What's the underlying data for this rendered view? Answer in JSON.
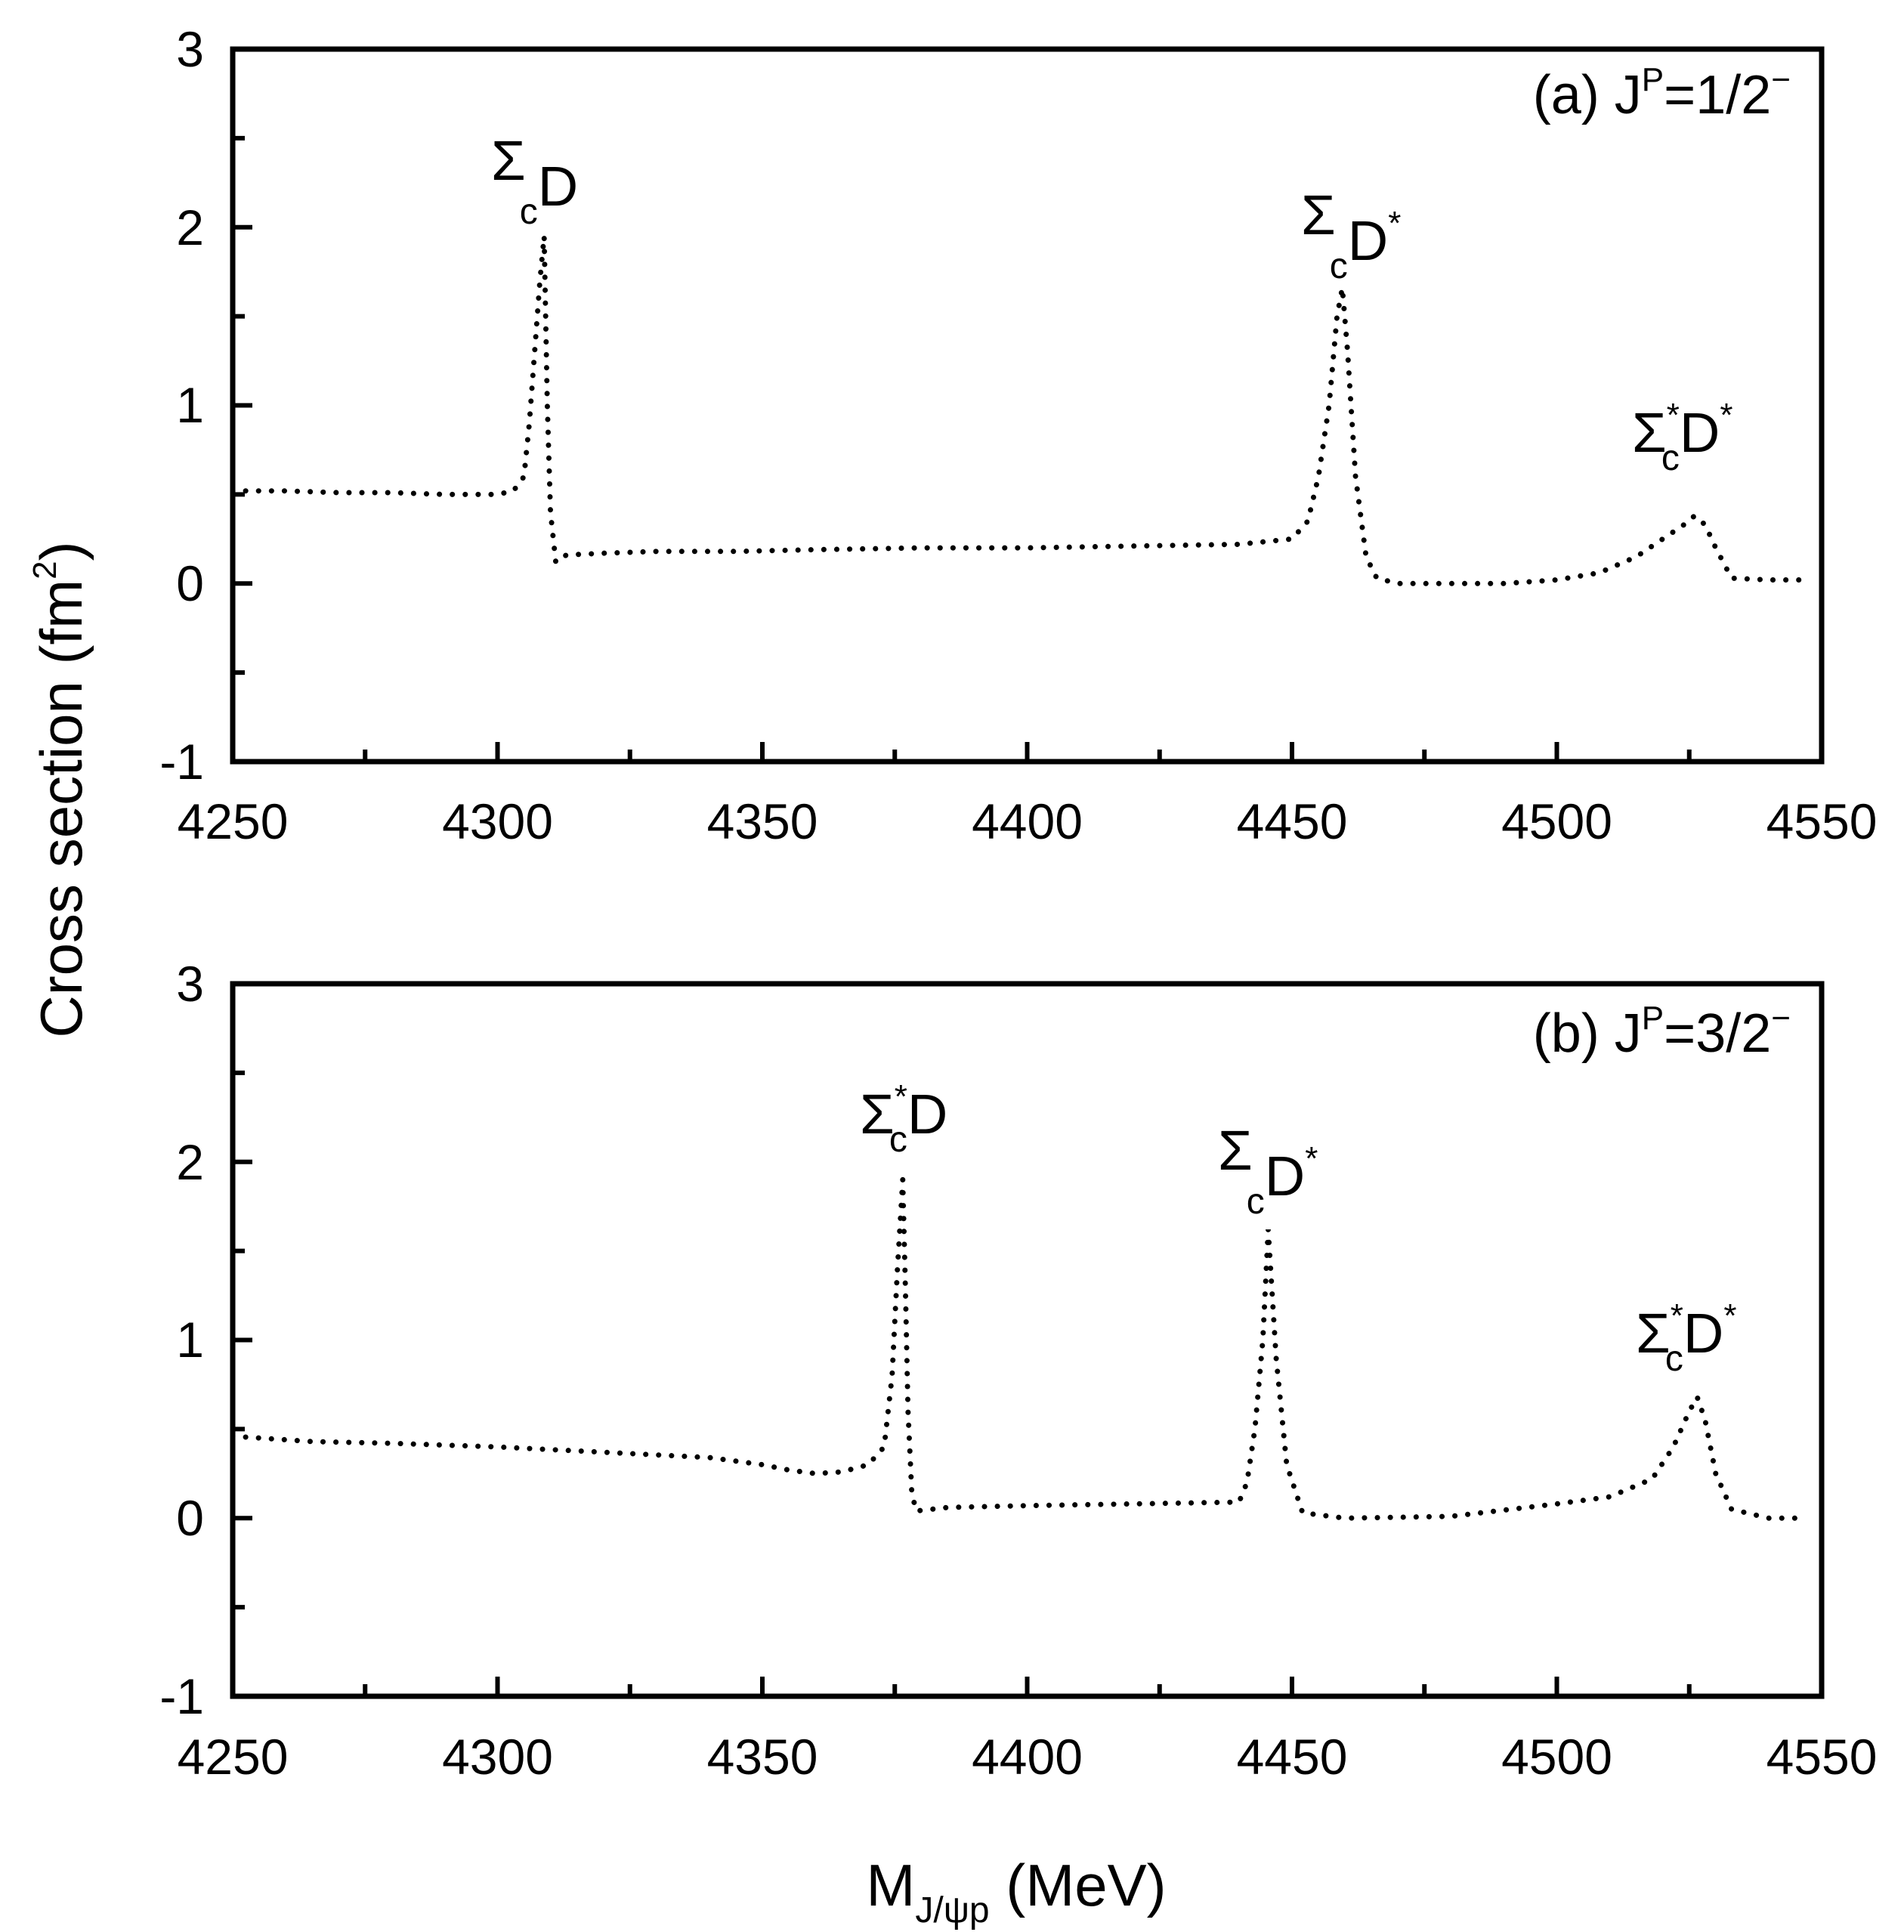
{
  "chart_data": {
    "type": "line",
    "ylabel": "Cross section (fm",
    "ylabel_sup": "2",
    "ylabel_close": ")",
    "xlabel": "M",
    "xlabel_sub": "J/ψp",
    "xlabel_unit": " (MeV)",
    "xlim": [
      4250,
      4550
    ],
    "ylim": [
      -1,
      3
    ],
    "xticks": [
      "4250",
      "4300",
      "4350",
      "4400",
      "4450",
      "4500",
      "4550"
    ],
    "yticks": [
      "-1",
      "0",
      "1",
      "2",
      "3"
    ],
    "line_style": "dotted",
    "line_color": "#000000",
    "panels": [
      {
        "id": "a",
        "label_prefix": "(a) J",
        "label_sup": "P",
        "label_value": "=1/2",
        "label_sup2": "−",
        "series": [
          {
            "name": "cross section",
            "x": [
              4250,
              4260,
              4270,
              4280,
              4290,
              4300,
              4303,
              4305,
              4306,
              4307,
              4308,
              4308.8,
              4309.4,
              4310,
              4311,
              4313,
              4320,
              4330,
              4345,
              4360,
              4380,
              4400,
              4420,
              4440,
              4450,
              4453,
              4455,
              4457,
              4458.5,
              4459.5,
              4460.5,
              4462,
              4464,
              4466,
              4470,
              4480,
              4490,
              4500,
              4508,
              4515,
              4520,
              4524,
              4526,
              4528,
              4530,
              4533,
              4540,
              4546
            ],
            "y": [
              0.52,
              0.52,
              0.51,
              0.51,
              0.5,
              0.5,
              0.52,
              0.6,
              0.9,
              1.3,
              1.7,
              1.95,
              1.0,
              0.4,
              0.12,
              0.16,
              0.17,
              0.18,
              0.18,
              0.19,
              0.2,
              0.2,
              0.21,
              0.22,
              0.25,
              0.35,
              0.6,
              1.0,
              1.5,
              1.66,
              1.3,
              0.6,
              0.15,
              0.03,
              0.0,
              0.0,
              0.0,
              0.02,
              0.06,
              0.15,
              0.25,
              0.33,
              0.38,
              0.33,
              0.2,
              0.03,
              0.02,
              0.02
            ]
          }
        ],
        "annotations": [
          {
            "base": "Σ",
            "sub": "c",
            "sup_left": "",
            "tail": "D",
            "sup": ""
          },
          {
            "base": "Σ",
            "sub": "c",
            "sup_left": "",
            "tail": "D",
            "sup": "*"
          },
          {
            "base": "Σ",
            "sub": "c",
            "sup_left": "*",
            "tail": "D",
            "sup": "*"
          }
        ]
      },
      {
        "id": "b",
        "label_prefix": "(b) J",
        "label_sup": "P",
        "label_value": "=3/2",
        "label_sup2": "−",
        "series": [
          {
            "name": "cross section",
            "x": [
              4250,
              4265,
              4280,
              4300,
              4320,
              4340,
              4350,
              4355,
              4360,
              4365,
              4370,
              4373,
              4374.5,
              4375.5,
              4376.5,
              4377,
              4377.5,
              4378.2,
              4379,
              4385,
              4400,
              4420,
              4440,
              4441.5,
              4443,
              4444.5,
              4445.5,
              4447,
              4449,
              4452,
              4460,
              4480,
              4500,
              4510,
              4518,
              4522,
              4525,
              4526.5,
              4528,
              4530,
              4533,
              4540,
              4546
            ],
            "y": [
              0.46,
              0.43,
              0.42,
              0.4,
              0.37,
              0.34,
              0.3,
              0.27,
              0.25,
              0.26,
              0.3,
              0.4,
              0.8,
              1.4,
              1.9,
              1.3,
              0.6,
              0.15,
              0.04,
              0.06,
              0.07,
              0.08,
              0.09,
              0.2,
              0.5,
              1.0,
              1.62,
              0.9,
              0.3,
              0.03,
              0.0,
              0.01,
              0.08,
              0.12,
              0.22,
              0.4,
              0.6,
              0.68,
              0.55,
              0.25,
              0.05,
              0.0,
              0.0
            ]
          }
        ],
        "annotations": [
          {
            "base": "Σ",
            "sub": "c",
            "sup_left": "*",
            "tail": "D",
            "sup": ""
          },
          {
            "base": "Σ",
            "sub": "c",
            "sup_left": "",
            "tail": "D",
            "sup": "*"
          },
          {
            "base": "Σ",
            "sub": "c",
            "sup_left": "*",
            "tail": "D",
            "sup": "*"
          }
        ]
      }
    ]
  }
}
